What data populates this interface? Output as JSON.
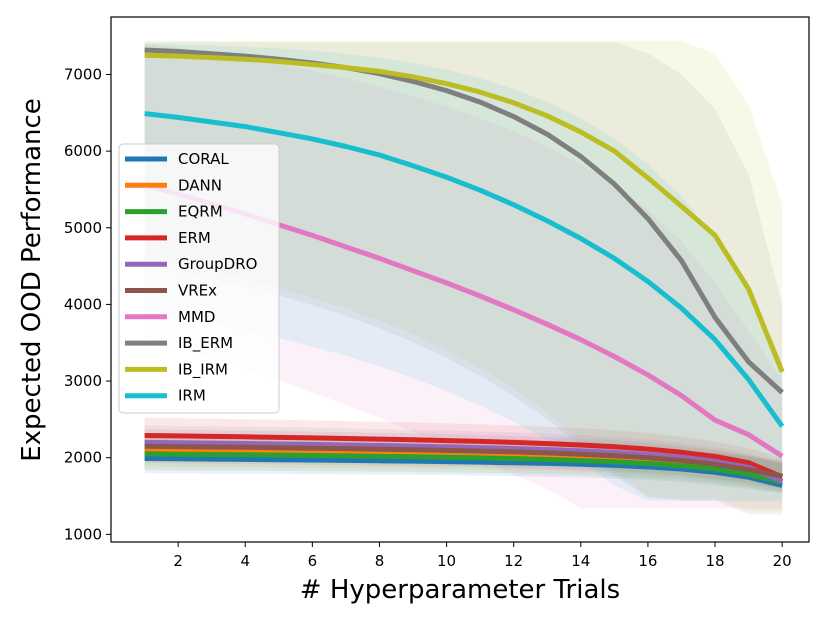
{
  "chart_data": {
    "type": "line",
    "title": "",
    "xlabel": "# Hyperparameter Trials",
    "ylabel": "Expected OOD Performance",
    "xlim": [
      0.0,
      20.8
    ],
    "ylim": [
      900,
      7750
    ],
    "x_ticks": [
      2,
      4,
      6,
      8,
      10,
      12,
      14,
      16,
      18,
      20
    ],
    "y_ticks": [
      1000,
      2000,
      3000,
      4000,
      5000,
      6000,
      7000
    ],
    "grid": false,
    "legend_position": "left",
    "x": [
      1,
      2,
      3,
      4,
      5,
      6,
      7,
      8,
      9,
      10,
      11,
      12,
      13,
      14,
      15,
      16,
      17,
      18,
      19,
      20
    ],
    "series": [
      {
        "name": "CORAL",
        "color": "#1f77b4",
        "values": [
          1990,
          1986,
          1982,
          1978,
          1974,
          1970,
          1965,
          1960,
          1955,
          1949,
          1942,
          1934,
          1925,
          1914,
          1900,
          1880,
          1852,
          1810,
          1745,
          1640
        ],
        "band": {
          "lower": [
            1800,
            1797,
            1794,
            1791,
            1788,
            1785,
            1782,
            1779,
            1775,
            1771,
            1766,
            1760,
            1752,
            1742,
            1728,
            1710,
            1685,
            1645,
            1590,
            1540
          ],
          "upper": [
            2200,
            2196,
            2192,
            2188,
            2184,
            2180,
            2176,
            2172,
            2168,
            2164,
            2158,
            2152,
            2145,
            2137,
            2127,
            2113,
            2092,
            2062,
            2020,
            1960
          ]
        }
      },
      {
        "name": "DANN",
        "color": "#ff7f0e",
        "values": [
          2090,
          2086,
          2082,
          2078,
          2073,
          2068,
          2063,
          2057,
          2051,
          2044,
          2036,
          2027,
          2016,
          2003,
          1986,
          1962,
          1928,
          1880,
          1810,
          1700
        ],
        "band": {
          "lower": [
            1880,
            1877,
            1874,
            1871,
            1868,
            1865,
            1862,
            1858,
            1854,
            1849,
            1843,
            1836,
            1827,
            1816,
            1801,
            1780,
            1750,
            1705,
            1640,
            1560
          ],
          "upper": [
            2300,
            2296,
            2292,
            2288,
            2284,
            2280,
            2275,
            2270,
            2264,
            2257,
            2249,
            2240,
            2228,
            2214,
            2196,
            2172,
            2138,
            2092,
            2030,
            1950
          ]
        }
      },
      {
        "name": "EQRM",
        "color": "#2ca02c",
        "values": [
          2050,
          2046,
          2042,
          2038,
          2034,
          2029,
          2024,
          2018,
          2012,
          2005,
          1997,
          1988,
          1977,
          1964,
          1948,
          1926,
          1896,
          1852,
          1785,
          1680
        ],
        "band": {
          "lower": [
            1840,
            1837,
            1834,
            1831,
            1828,
            1825,
            1821,
            1817,
            1813,
            1808,
            1802,
            1795,
            1786,
            1775,
            1761,
            1742,
            1715,
            1675,
            1615,
            1545
          ],
          "upper": [
            2260,
            2256,
            2252,
            2248,
            2244,
            2240,
            2235,
            2230,
            2224,
            2217,
            2209,
            2200,
            2189,
            2176,
            2159,
            2136,
            2104,
            2060,
            2000,
            1925
          ]
        }
      },
      {
        "name": "ERM",
        "color": "#d62728",
        "values": [
          2290,
          2284,
          2278,
          2272,
          2265,
          2258,
          2250,
          2242,
          2233,
          2223,
          2212,
          2199,
          2184,
          2166,
          2143,
          2112,
          2071,
          2015,
          1935,
          1750
        ],
        "band": {
          "lower": [
            2060,
            2056,
            2052,
            2047,
            2042,
            2037,
            2031,
            2024,
            2017,
            2009,
            2000,
            1989,
            1976,
            1960,
            1940,
            1913,
            1877,
            1826,
            1755,
            1640
          ],
          "upper": [
            2520,
            2514,
            2508,
            2501,
            2494,
            2486,
            2478,
            2469,
            2459,
            2448,
            2435,
            2421,
            2404,
            2383,
            2357,
            2322,
            2274,
            2210,
            2125,
            1990
          ]
        }
      },
      {
        "name": "GroupDRO",
        "color": "#9467bd",
        "values": [
          2200,
          2195,
          2190,
          2185,
          2179,
          2173,
          2166,
          2159,
          2151,
          2142,
          2132,
          2120,
          2106,
          2089,
          2068,
          2040,
          2002,
          1950,
          1875,
          1690
        ],
        "band": {
          "lower": [
            1980,
            1976,
            1972,
            1968,
            1963,
            1958,
            1953,
            1947,
            1940,
            1932,
            1924,
            1914,
            1902,
            1887,
            1869,
            1845,
            1812,
            1766,
            1700,
            1580
          ],
          "upper": [
            2420,
            2415,
            2409,
            2403,
            2397,
            2390,
            2382,
            2374,
            2365,
            2355,
            2343,
            2330,
            2314,
            2295,
            2271,
            2239,
            2196,
            2138,
            2060,
            1930
          ]
        }
      },
      {
        "name": "VREx",
        "color": "#8c564b",
        "values": [
          2150,
          2145,
          2140,
          2135,
          2130,
          2124,
          2118,
          2111,
          2103,
          2095,
          2086,
          2075,
          2062,
          2046,
          2026,
          2000,
          1964,
          1915,
          1845,
          1760
        ],
        "band": {
          "lower": [
            1930,
            1926,
            1922,
            1918,
            1914,
            1909,
            1904,
            1898,
            1892,
            1885,
            1877,
            1867,
            1856,
            1842,
            1825,
            1802,
            1770,
            1726,
            1665,
            1600
          ],
          "upper": [
            2370,
            2365,
            2360,
            2354,
            2348,
            2341,
            2334,
            2326,
            2318,
            2308,
            2297,
            2285,
            2270,
            2252,
            2229,
            2199,
            2158,
            2104,
            2030,
            1930
          ]
        }
      },
      {
        "name": "MMD",
        "color": "#e377c2",
        "values": [
          5560,
          5440,
          5310,
          5180,
          5040,
          4900,
          4750,
          4600,
          4440,
          4280,
          4110,
          3930,
          3740,
          3540,
          3320,
          3080,
          2810,
          2490,
          2300,
          2020
        ],
        "band": {
          "lower": [
            3550,
            3430,
            3300,
            3160,
            3010,
            2850,
            2690,
            2520,
            2340,
            2160,
            1970,
            1780,
            1590,
            1340,
            1340,
            1340,
            1340,
            1340,
            1340,
            1340
          ],
          "upper": [
            7400,
            7350,
            7290,
            7220,
            7140,
            7050,
            6950,
            6840,
            6720,
            6580,
            6430,
            6260,
            6060,
            5830,
            5560,
            5230,
            4820,
            4280,
            3660,
            3000
          ]
        }
      },
      {
        "name": "IB_ERM",
        "color": "#7f7f7f",
        "values": [
          7320,
          7300,
          7270,
          7240,
          7200,
          7150,
          7090,
          7010,
          6910,
          6790,
          6640,
          6450,
          6220,
          5930,
          5570,
          5120,
          4570,
          3830,
          3250,
          2850
        ],
        "band": {
          "lower": [
            4500,
            4420,
            4330,
            4230,
            4120,
            3990,
            3850,
            3690,
            3510,
            3300,
            3070,
            2800,
            2500,
            2150,
            1760,
            1480,
            1440,
            1440,
            1260,
            1260
          ],
          "upper": [
            7420,
            7420,
            7420,
            7420,
            7420,
            7420,
            7420,
            7420,
            7420,
            7420,
            7420,
            7420,
            7420,
            7420,
            7420,
            7280,
            7000,
            6550,
            5700,
            4000
          ]
        }
      },
      {
        "name": "IB_IRM",
        "color": "#bcbd22",
        "values": [
          7250,
          7240,
          7220,
          7200,
          7170,
          7130,
          7090,
          7040,
          6970,
          6880,
          6770,
          6630,
          6460,
          6250,
          6000,
          5650,
          5280,
          4900,
          4200,
          3120
        ],
        "band": {
          "lower": [
            4600,
            4520,
            4430,
            4330,
            4220,
            4090,
            3950,
            3790,
            3610,
            3400,
            3170,
            2900,
            2590,
            2230,
            1820,
            1500,
            1470,
            1470,
            1300,
            1300
          ],
          "upper": [
            7440,
            7440,
            7440,
            7440,
            7440,
            7440,
            7440,
            7440,
            7440,
            7440,
            7440,
            7440,
            7440,
            7440,
            7440,
            7440,
            7440,
            7270,
            6600,
            5300
          ]
        }
      },
      {
        "name": "IRM",
        "color": "#17becf",
        "values": [
          6490,
          6440,
          6380,
          6320,
          6240,
          6160,
          6060,
          5950,
          5810,
          5660,
          5490,
          5300,
          5090,
          4860,
          4600,
          4300,
          3950,
          3540,
          3020,
          2410
        ],
        "band": {
          "lower": [
            3900,
            3830,
            3750,
            3660,
            3560,
            3450,
            3330,
            3190,
            3040,
            2870,
            2680,
            2470,
            2230,
            1960,
            1640,
            1440,
            1440,
            1440,
            1440,
            1440
          ],
          "upper": [
            7400,
            7390,
            7380,
            7360,
            7340,
            7310,
            7270,
            7220,
            7150,
            7060,
            6950,
            6810,
            6640,
            6430,
            6160,
            5830,
            5410,
            4880,
            4190,
            3250
          ]
        }
      }
    ]
  }
}
